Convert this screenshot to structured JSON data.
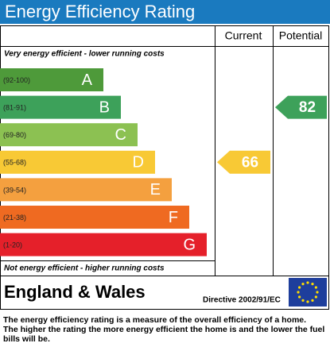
{
  "header": {
    "title": "Energy Efficiency Rating"
  },
  "columns": {
    "current": "Current",
    "potential": "Potential"
  },
  "top_note": "Very energy efficient - lower running costs",
  "bottom_note": "Not energy efficient - higher running costs",
  "bands": [
    {
      "range": "(92-100)",
      "letter": "A",
      "color": "#4e9a3a"
    },
    {
      "range": "(81-91)",
      "letter": "B",
      "color": "#3da15a"
    },
    {
      "range": "(69-80)",
      "letter": "C",
      "color": "#8cc152"
    },
    {
      "range": "(55-68)",
      "letter": "D",
      "color": "#f8c935"
    },
    {
      "range": "(39-54)",
      "letter": "E",
      "color": "#f4a03f"
    },
    {
      "range": "(21-38)",
      "letter": "F",
      "color": "#ef6a21"
    },
    {
      "range": "(1-20)",
      "letter": "G",
      "color": "#e5202a"
    }
  ],
  "current": {
    "value": 66
  },
  "potential": {
    "value": 82
  },
  "footer": {
    "region": "England & Wales",
    "directive": "Directive 2002/91/EC"
  },
  "description": [
    "The energy efficiency rating is a measure of the overall efficiency of a home.",
    "The higher the rating the more energy efficient the home is and the lower the fuel",
    "bills will be."
  ]
}
